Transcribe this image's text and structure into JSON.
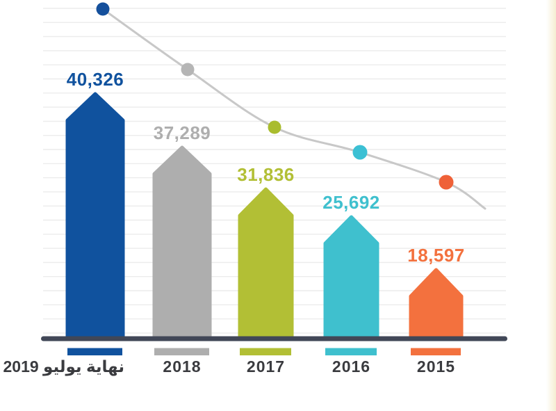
{
  "chart_data": {
    "type": "bar",
    "title": "",
    "subtitle": "",
    "xlabel": "",
    "ylabel": "",
    "categories": [
      "نهاية يوليو 2019",
      "2018",
      "2017",
      "2016",
      "2015"
    ],
    "values": [
      40326,
      37289,
      31836,
      25692,
      18597
    ],
    "value_labels": [
      "40,326",
      "37,289",
      "31,836",
      "25,692",
      "18,597"
    ],
    "colors": [
      "#10529e",
      "#aeaeae",
      "#b2bf35",
      "#3fc0ce",
      "#f3713e"
    ],
    "trend_line": {
      "type": "line",
      "color": "#c8c8c8",
      "dot_colors": [
        "#15509c",
        "#b5b5b5",
        "#a9bc2e",
        "#3cc0d4",
        "#ef6138"
      ],
      "represents_categories": [
        "نهاية يوليو 2019",
        "2018",
        "2017",
        "2016",
        "2015"
      ],
      "values": [
        40326,
        37289,
        31836,
        25692,
        18597
      ]
    },
    "axis_color": "#414757",
    "gridline_color": "#ececec",
    "category_label_color": "#3a3b3f",
    "grid": true,
    "legend": null,
    "ylim": null
  }
}
